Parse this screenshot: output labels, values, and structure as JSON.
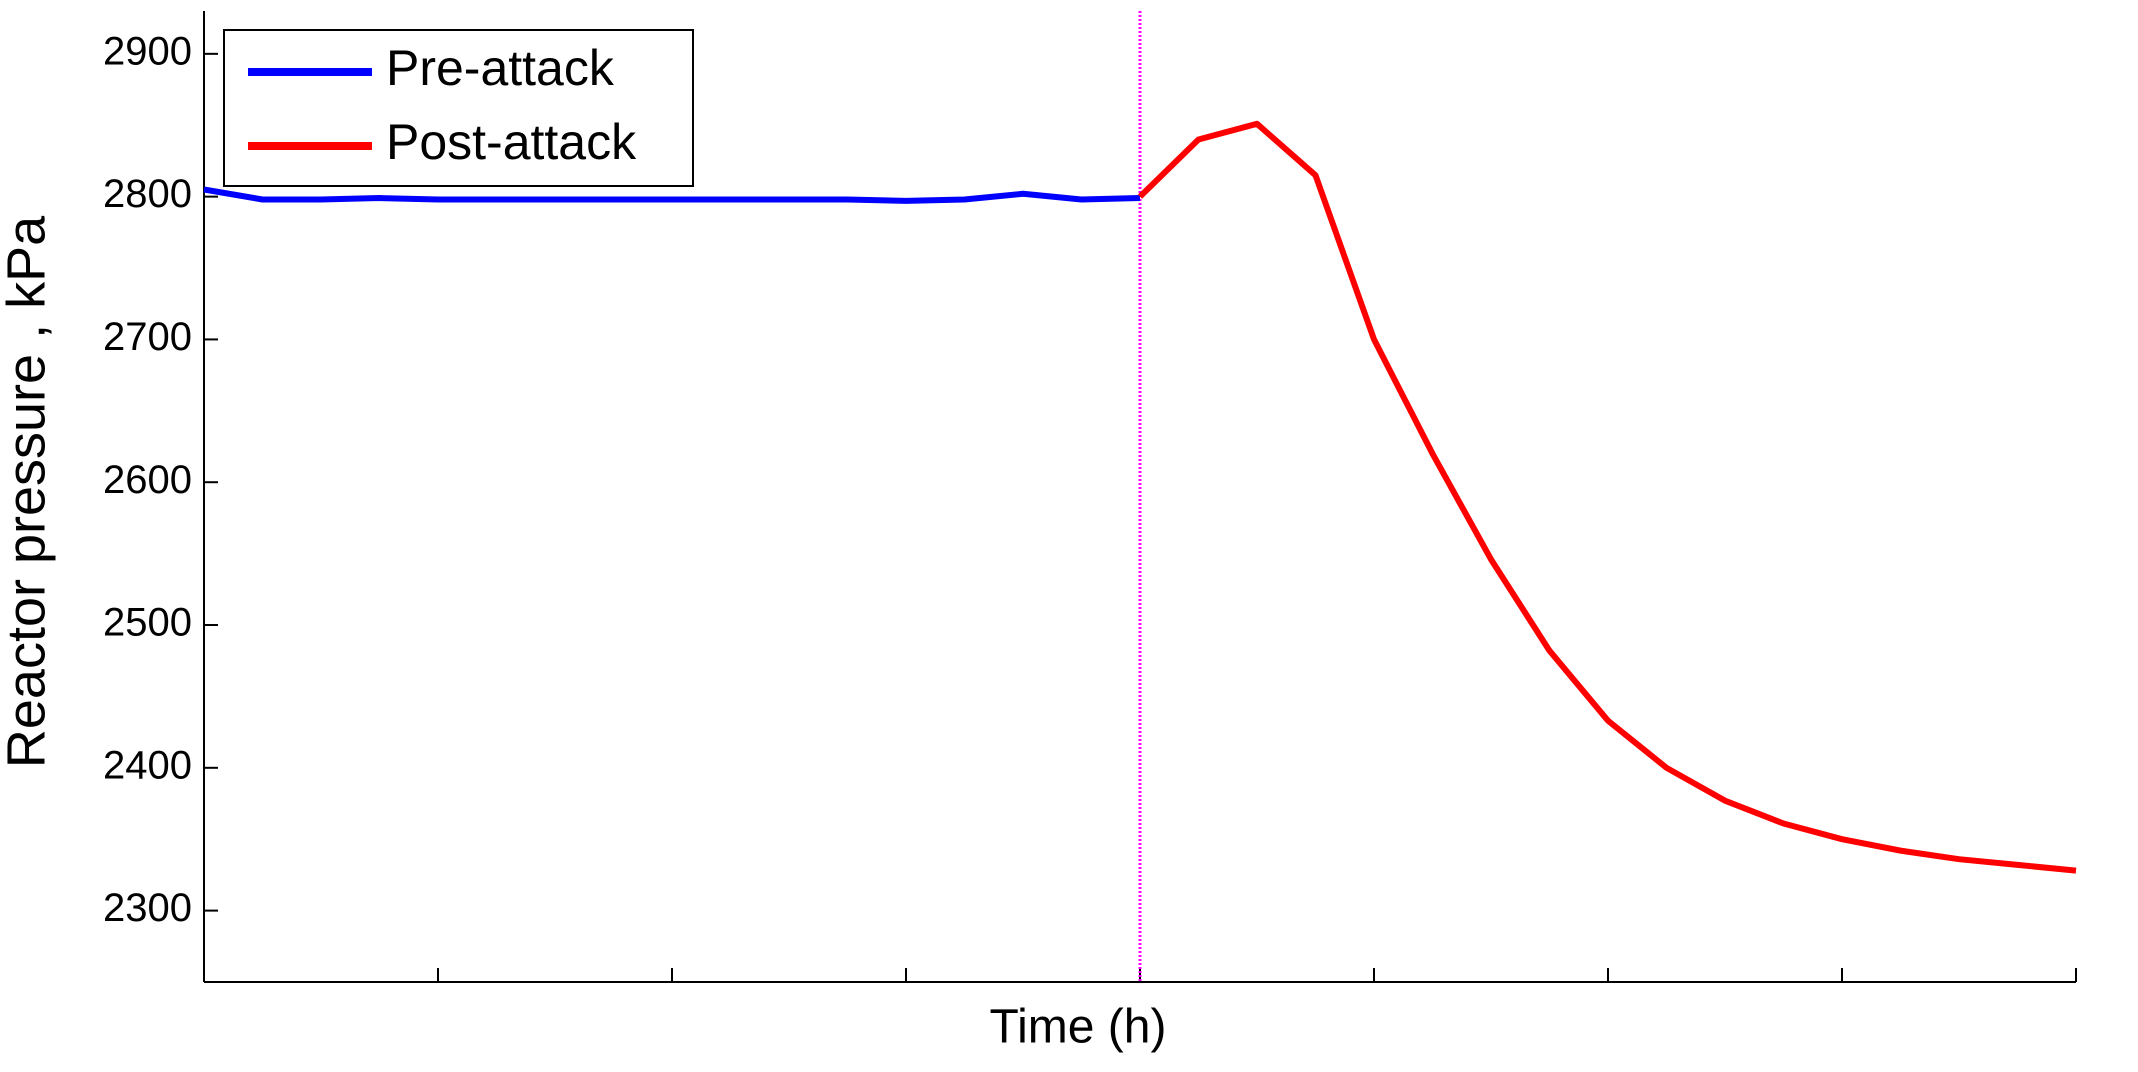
{
  "chart_data": {
    "type": "line",
    "y_label": "Reactor pressure , kPa",
    "x_label": "Time (h)",
    "ylim": [
      2250,
      2930
    ],
    "yticks": [
      2300,
      2400,
      2500,
      2600,
      2700,
      2800,
      2900
    ],
    "series": [
      {
        "name": "Pre-attack",
        "color": "#0000ff",
        "values": [
          2805,
          2798,
          2798,
          2799,
          2798,
          2798,
          2798,
          2798,
          2798,
          2798,
          2798,
          2798,
          2797,
          2798,
          2802,
          2798,
          2799,
          null,
          null,
          null,
          null,
          null,
          null,
          null,
          null,
          null,
          null,
          null,
          null,
          null,
          null,
          null,
          null
        ]
      },
      {
        "name": "Post-attack",
        "color": "#ff0000",
        "values": [
          null,
          null,
          null,
          null,
          null,
          null,
          null,
          null,
          null,
          null,
          null,
          null,
          null,
          null,
          null,
          null,
          2800,
          2840,
          2851,
          2815,
          2700,
          2620,
          2546,
          2482,
          2433,
          2400,
          2377,
          2361,
          2350,
          2342,
          2336,
          2332,
          2328
        ]
      }
    ]
  }
}
